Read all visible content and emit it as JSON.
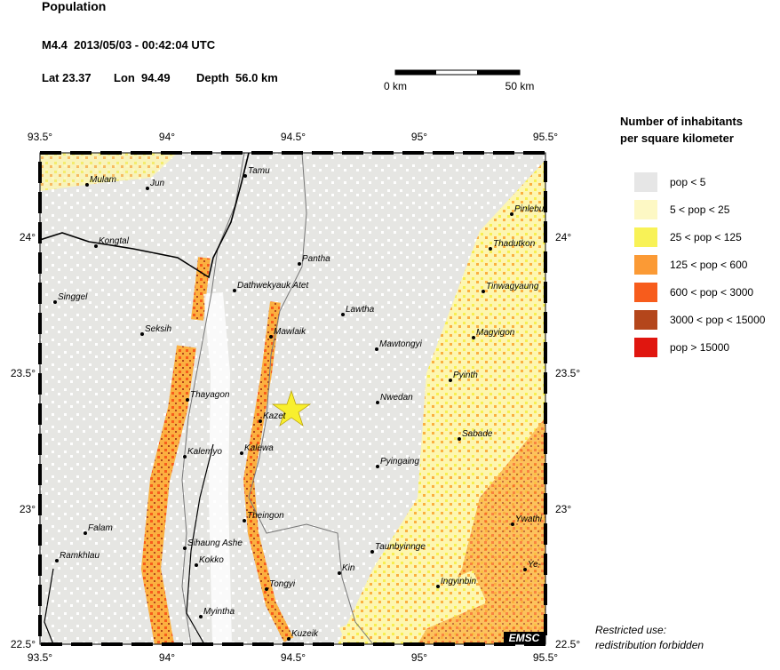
{
  "header": {
    "title": "Population",
    "event": "M4.4  2013/05/03 - 00:42:04 UTC",
    "lat": "Lat 23.37",
    "lon": "Lon  94.49",
    "depth": "Depth  56.0 km"
  },
  "scale": {
    "start": "0 km",
    "end": "50 km"
  },
  "axes": {
    "longitudes": [
      "93.5°",
      "94°",
      "94.5°",
      "95°",
      "95.5°"
    ],
    "latitudes": [
      "24°",
      "23.5°",
      "23°",
      "22.5°"
    ]
  },
  "legend": {
    "title": [
      "Number of inhabitants",
      "per square kilometer"
    ],
    "items": [
      {
        "label": "pop < 5",
        "color": "#e6e6e6"
      },
      {
        "label": "5 < pop < 25",
        "color": "#fdf8c4"
      },
      {
        "label": "25 < pop < 125",
        "color": "#f8f257"
      },
      {
        "label": "125 < pop < 600",
        "color": "#fb9a35"
      },
      {
        "label": "600 < pop < 3000",
        "color": "#f75c1c"
      },
      {
        "label": "3000 < pop < 15000",
        "color": "#b4461b"
      },
      {
        "label": "pop > 15000",
        "color": "#e0160f"
      }
    ]
  },
  "towns": [
    "Mulam",
    "Jun",
    "Tamu",
    "Kongtal",
    "Dathwekyauk Atet",
    "Pantha",
    "Singgel",
    "Seksih",
    "Mawlaik",
    "Lawtha",
    "Mawtongyi",
    "Magyigon",
    "Pinlebu",
    "Thadutkon",
    "Tinwagyaung",
    "Pyinth",
    "Thayagon",
    "Nwedan",
    "Kazet",
    "Sabade",
    "Kalemyo",
    "Kalewa",
    "Pyingaing",
    "Theingon",
    "Ywathi",
    "Falam",
    "Sihaung Ashe",
    "Taunbyinnge",
    "Kokko",
    "Kin",
    "Ye-",
    "Ramkhlau",
    "Tongyi",
    "Ingyinbin",
    "Myintha",
    "Kuzeik"
  ],
  "credit": "EMSC",
  "notice": [
    "Restricted use:",
    "redistribution forbidden"
  ]
}
